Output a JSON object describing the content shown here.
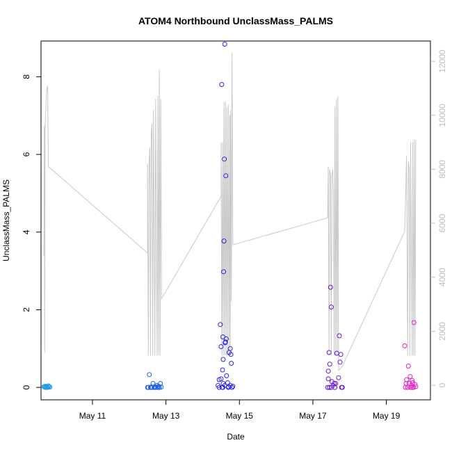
{
  "chart_data": {
    "type": "scatter",
    "title": "ATOM4 Northbound UnclassMass_PALMS",
    "xlabel": "Date",
    "ylabel": "UnclassMass_PALMS",
    "x_ticks": [
      {
        "day": 11,
        "label": "May 11"
      },
      {
        "day": 13,
        "label": "May 13"
      },
      {
        "day": 15,
        "label": "May 15"
      },
      {
        "day": 17,
        "label": "May 17"
      },
      {
        "day": 19,
        "label": "May 19"
      }
    ],
    "xlim": [
      9.6,
      20.2
    ],
    "y_left": {
      "ticks": [
        0,
        2,
        4,
        6,
        8
      ],
      "tick_labels": [
        "0",
        "2",
        "4",
        "6",
        "8"
      ],
      "lim": [
        -0.32,
        8.92
      ]
    },
    "y_right": {
      "ticks": [
        0,
        2000,
        4000,
        6000,
        8000,
        10000,
        12000
      ],
      "tick_labels": [
        "0",
        "2000",
        "4000",
        "6000",
        "8000",
        "10000",
        "12000"
      ],
      "lim": [
        -540,
        12750
      ],
      "color": "#bdbdbd"
    },
    "line_series": {
      "axis": "right",
      "color": "#c8c8c8",
      "points": [
        [
          9.68,
          4800
        ],
        [
          9.69,
          9600
        ],
        [
          9.7,
          1200
        ],
        [
          9.71,
          9600
        ],
        [
          9.73,
          10200
        ],
        [
          9.74,
          10600
        ],
        [
          9.76,
          11000
        ],
        [
          9.78,
          11100
        ],
        [
          9.8,
          8100
        ],
        [
          12.5,
          4900
        ],
        [
          12.5,
          8200
        ],
        [
          12.52,
          1100
        ],
        [
          12.54,
          8200
        ],
        [
          12.56,
          8800
        ],
        [
          12.58,
          1100
        ],
        [
          12.6,
          9300
        ],
        [
          12.62,
          9700
        ],
        [
          12.64,
          1100
        ],
        [
          12.66,
          10200
        ],
        [
          12.7,
          1100
        ],
        [
          12.72,
          10600
        ],
        [
          12.76,
          1100
        ],
        [
          12.78,
          10700
        ],
        [
          12.8,
          1100
        ],
        [
          12.82,
          11700
        ],
        [
          12.84,
          1100
        ],
        [
          12.86,
          10600
        ],
        [
          12.88,
          3200
        ],
        [
          14.5,
          7000
        ],
        [
          14.5,
          9000
        ],
        [
          14.52,
          1100
        ],
        [
          14.54,
          9000
        ],
        [
          14.56,
          1100
        ],
        [
          14.58,
          10500
        ],
        [
          14.6,
          1100
        ],
        [
          14.62,
          10500
        ],
        [
          14.64,
          1100
        ],
        [
          14.66,
          10300
        ],
        [
          14.68,
          1100
        ],
        [
          14.7,
          10400
        ],
        [
          14.72,
          1100
        ],
        [
          14.74,
          10000
        ],
        [
          14.75,
          1100
        ],
        [
          14.76,
          10200
        ],
        [
          14.78,
          3100
        ],
        [
          14.8,
          12300
        ],
        [
          14.82,
          5200
        ],
        [
          17.4,
          6200
        ],
        [
          17.42,
          8100
        ],
        [
          17.44,
          1100
        ],
        [
          17.46,
          8000
        ],
        [
          17.48,
          7800
        ],
        [
          17.5,
          1100
        ],
        [
          17.52,
          7800
        ],
        [
          17.54,
          8000
        ],
        [
          17.56,
          7200
        ],
        [
          17.58,
          1100
        ],
        [
          17.6,
          10300
        ],
        [
          17.62,
          1100
        ],
        [
          17.64,
          10600
        ],
        [
          17.66,
          1100
        ],
        [
          17.68,
          10700
        ],
        [
          17.7,
          550
        ],
        [
          17.8,
          700
        ],
        [
          19.5,
          5700
        ],
        [
          19.55,
          8500
        ],
        [
          19.58,
          1100
        ],
        [
          19.6,
          8300
        ],
        [
          19.62,
          8000
        ],
        [
          19.64,
          1100
        ],
        [
          19.66,
          9000
        ],
        [
          19.7,
          1100
        ],
        [
          19.72,
          9000
        ],
        [
          19.74,
          1100
        ],
        [
          19.76,
          9100
        ],
        [
          19.78,
          1100
        ],
        [
          19.8,
          9100
        ]
      ]
    },
    "scatter_series": {
      "axis": "left",
      "marker": "open-circle",
      "groups": [
        {
          "color": "#1f9fe0",
          "points": [
            [
              9.68,
              0.02
            ],
            [
              9.7,
              0.01
            ],
            [
              9.72,
              0.03
            ],
            [
              9.74,
              0.0
            ],
            [
              9.76,
              0.02
            ],
            [
              9.78,
              0.01
            ],
            [
              9.8,
              0.04
            ],
            [
              9.82,
              0.02
            ],
            [
              9.84,
              0.01
            ],
            [
              9.71,
              0.0
            ],
            [
              9.77,
              0.0
            ]
          ]
        },
        {
          "color": "#1a5ee8",
          "points": [
            [
              12.5,
              0.0
            ],
            [
              12.52,
              0.0
            ],
            [
              12.55,
              0.33
            ],
            [
              12.58,
              0.0
            ],
            [
              12.6,
              0.01
            ],
            [
              12.62,
              0.0
            ],
            [
              12.65,
              0.1
            ],
            [
              12.68,
              0.0
            ],
            [
              12.7,
              0.02
            ],
            [
              12.72,
              0.0
            ],
            [
              12.75,
              0.05
            ],
            [
              12.78,
              0.0
            ],
            [
              12.8,
              0.03
            ],
            [
              12.82,
              0.0
            ],
            [
              12.85,
              0.1
            ],
            [
              12.87,
              0.01
            ]
          ]
        },
        {
          "color": "#2a24e8",
          "points": [
            [
              14.42,
              0.05
            ],
            [
              14.45,
              0.2
            ],
            [
              14.48,
              1.62
            ],
            [
              14.5,
              1.05
            ],
            [
              14.52,
              7.8
            ],
            [
              14.54,
              0.45
            ],
            [
              14.55,
              1.3
            ],
            [
              14.56,
              0.72
            ],
            [
              14.57,
              2.98
            ],
            [
              14.58,
              3.77
            ],
            [
              14.59,
              5.88
            ],
            [
              14.6,
              8.84
            ],
            [
              14.61,
              1.15
            ],
            [
              14.62,
              1.17
            ],
            [
              14.63,
              5.45
            ],
            [
              14.64,
              1.25
            ],
            [
              14.5,
              0.22
            ],
            [
              14.53,
              0.0
            ],
            [
              14.56,
              0.1
            ],
            [
              14.6,
              0.05
            ],
            [
              14.65,
              0.3
            ],
            [
              14.68,
              0.12
            ],
            [
              14.7,
              0.02
            ],
            [
              14.72,
              0.9
            ],
            [
              14.75,
              1.0
            ],
            [
              14.77,
              0.85
            ],
            [
              14.78,
              0.62
            ],
            [
              14.8,
              0.0
            ],
            [
              14.82,
              0.03
            ],
            [
              14.45,
              0.0
            ],
            [
              14.55,
              0.0
            ],
            [
              14.7,
              0.0
            ],
            [
              14.75,
              0.05
            ]
          ]
        },
        {
          "color": "#6616d8",
          "points": [
            [
              17.4,
              0.0
            ],
            [
              17.42,
              0.42
            ],
            [
              17.44,
              0.9
            ],
            [
              17.46,
              0.6
            ],
            [
              17.48,
              2.58
            ],
            [
              17.5,
              2.07
            ],
            [
              17.52,
              0.15
            ],
            [
              17.55,
              0.05
            ],
            [
              17.58,
              0.1
            ],
            [
              17.6,
              0.0
            ],
            [
              17.62,
              0.1
            ],
            [
              17.65,
              0.88
            ],
            [
              17.7,
              0.25
            ],
            [
              17.72,
              1.33
            ],
            [
              17.74,
              0.65
            ],
            [
              17.76,
              0.85
            ],
            [
              17.78,
              0.0
            ],
            [
              17.8,
              0.0
            ],
            [
              17.45,
              0.0
            ],
            [
              17.5,
              0.0
            ],
            [
              17.42,
              0.22
            ]
          ]
        },
        {
          "color": "#e61fc0",
          "points": [
            [
              19.5,
              1.07
            ],
            [
              19.55,
              0.2
            ],
            [
              19.6,
              0.55
            ],
            [
              19.62,
              0.1
            ],
            [
              19.65,
              0.28
            ],
            [
              19.68,
              0.05
            ],
            [
              19.7,
              0.0
            ],
            [
              19.72,
              0.12
            ],
            [
              19.75,
              1.67
            ],
            [
              19.78,
              0.08
            ],
            [
              19.8,
              0.02
            ],
            [
              19.52,
              0.0
            ],
            [
              19.58,
              0.0
            ],
            [
              19.66,
              0.0
            ],
            [
              19.74,
              0.0
            ],
            [
              19.54,
              0.1
            ],
            [
              19.7,
              0.18
            ]
          ]
        }
      ]
    },
    "grid": false,
    "legend": "none"
  }
}
